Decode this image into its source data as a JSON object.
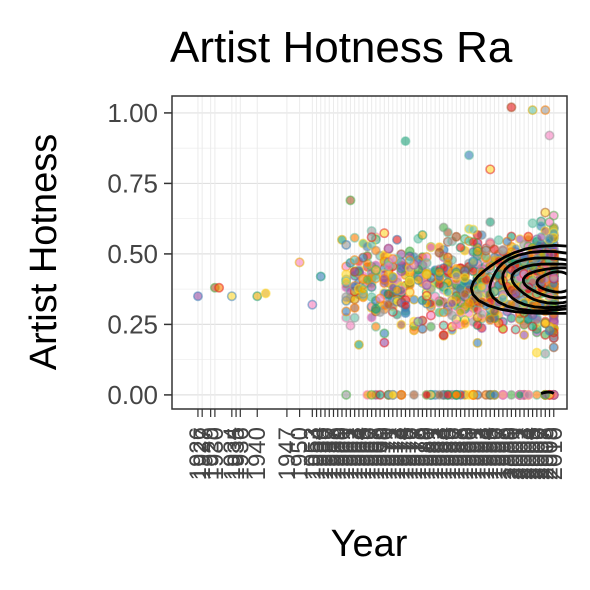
{
  "chart_data": {
    "type": "scatter",
    "title": "Artist Hotness Ra",
    "xlabel": "Year",
    "ylabel": "Artist Hotness",
    "ylim": [
      -0.05,
      1.06
    ],
    "xlim": [
      1922,
      2011
    ],
    "y_ticks": [
      "0.00",
      "0.25",
      "0.50",
      "0.75",
      "1.00"
    ],
    "y_tick_values": [
      0,
      0.25,
      0.5,
      0.75,
      1.0
    ],
    "x_categories": [
      1926,
      1927,
      1929,
      1930,
      1934,
      1935,
      1936,
      1940,
      1947,
      1950,
      1953,
      1954,
      1955,
      1956,
      1957,
      1958,
      1959,
      1960,
      1961,
      1962,
      1963,
      1964,
      1965,
      1966,
      1967,
      1968,
      1969,
      1970,
      1971,
      1972,
      1973,
      1974,
      1975,
      1976,
      1977,
      1978,
      1979,
      1980,
      1981,
      1982,
      1983,
      1984,
      1985,
      1986,
      1987,
      1988,
      1989,
      1990,
      1991,
      1992,
      1993,
      1994,
      1995,
      1996,
      1997,
      1998,
      1999,
      2000,
      2001,
      2002,
      2003,
      2004,
      2005,
      2006,
      2007,
      2008,
      2009,
      2010
    ],
    "grid": true,
    "legend": "none",
    "point_palette": [
      "#e41a1c",
      "#377eb8",
      "#4daf4a",
      "#984ea3",
      "#ff7f00",
      "#ffd92f",
      "#a65628",
      "#f781bf",
      "#999999",
      "#66c2a5",
      "#e6ab02",
      "#1b9e77"
    ],
    "points_sample": [
      {
        "x": 1926,
        "y": 0.35
      },
      {
        "x": 1930,
        "y": 0.38
      },
      {
        "x": 1931,
        "y": 0.38
      },
      {
        "x": 1934,
        "y": 0.35
      },
      {
        "x": 1940,
        "y": 0.35
      },
      {
        "x": 1942,
        "y": 0.36
      },
      {
        "x": 1950,
        "y": 0.47
      },
      {
        "x": 1953,
        "y": 0.32
      },
      {
        "x": 1955,
        "y": 0.42
      },
      {
        "x": 1960,
        "y": 0.55
      },
      {
        "x": 1962,
        "y": 0.69
      },
      {
        "x": 1968,
        "y": 0.0
      },
      {
        "x": 1975,
        "y": 0.9
      },
      {
        "x": 1990,
        "y": 0.85
      },
      {
        "x": 1995,
        "y": 0.8
      },
      {
        "x": 2000,
        "y": 1.02
      },
      {
        "x": 2005,
        "y": 1.01
      },
      {
        "x": 2008,
        "y": 1.01
      },
      {
        "x": 2009,
        "y": 0.92
      },
      {
        "x": 2010,
        "y": 0.5
      }
    ],
    "density_contours": {
      "center": {
        "x": 2008,
        "y": 0.4
      },
      "levels": 6
    }
  }
}
